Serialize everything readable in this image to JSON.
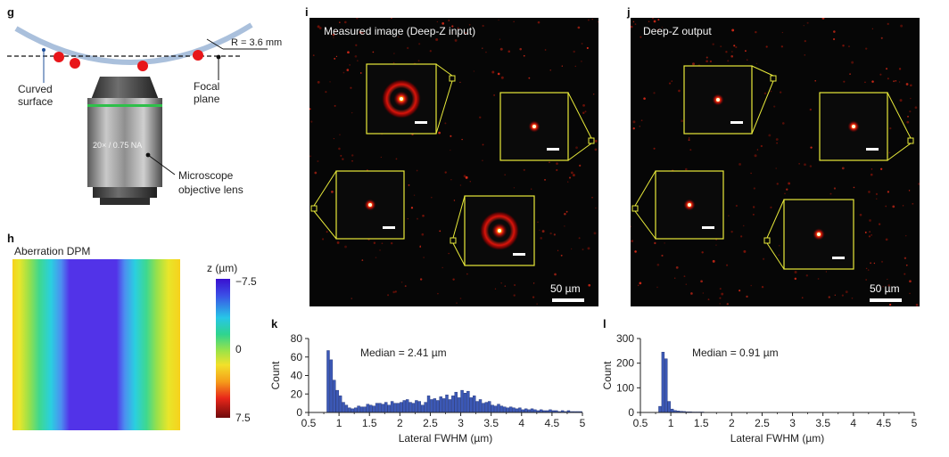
{
  "panel_g": {
    "letter": "g",
    "radius_label": "R = 3.6 mm",
    "curved_surface_line1": "Curved",
    "curved_surface_line2": "surface",
    "focal_line1": "Focal",
    "focal_line2": "plane",
    "objective_marking": "20× / 0.75 NA",
    "objective_line1": "Microscope",
    "objective_line2": "objective lens"
  },
  "panel_h": {
    "letter": "h",
    "title": "Aberration DPM",
    "colorbar_unit": "z (µm)",
    "colorbar_ticks": [
      "−7.5",
      "0",
      "7.5"
    ]
  },
  "panel_i": {
    "letter": "i",
    "title": "Measured image (Deep-Z input)",
    "scale_label": "50 µm"
  },
  "panel_j": {
    "letter": "j",
    "title": "Deep-Z output",
    "scale_label": "50 µm"
  },
  "chart_data": [
    {
      "panel": "k",
      "type": "bar",
      "title": "",
      "annotation": "Median = 2.41 µm",
      "xlabel": "Lateral FWHM (µm)",
      "ylabel": "Count",
      "xlim": [
        0.5,
        5
      ],
      "ylim": [
        0,
        80
      ],
      "xticks": [
        "0.5",
        "1",
        "1.5",
        "2",
        "2.5",
        "3",
        "3.5",
        "4",
        "4.5",
        "5"
      ],
      "yticks": [
        "0",
        "20",
        "40",
        "60",
        "80"
      ],
      "bin_width": 0.05,
      "bin_start": 0.8,
      "values": [
        67,
        57,
        35,
        24,
        18,
        11,
        8,
        5,
        4,
        5,
        7,
        6,
        6,
        9,
        8,
        7,
        10,
        10,
        9,
        11,
        8,
        12,
        10,
        10,
        11,
        13,
        14,
        11,
        10,
        13,
        12,
        8,
        11,
        18,
        14,
        15,
        13,
        17,
        15,
        19,
        14,
        18,
        22,
        16,
        24,
        21,
        23,
        16,
        18,
        12,
        14,
        10,
        11,
        12,
        8,
        7,
        9,
        7,
        6,
        5,
        6,
        5,
        4,
        5,
        3,
        4,
        3,
        4,
        3,
        2,
        3,
        2,
        2,
        3,
        2,
        2,
        1,
        2,
        1,
        2,
        1,
        1,
        1,
        1
      ]
    },
    {
      "panel": "l",
      "type": "bar",
      "title": "",
      "annotation": "Median = 0.91 µm",
      "xlabel": "Lateral FWHM (µm)",
      "ylabel": "Count",
      "xlim": [
        0.5,
        5
      ],
      "ylim": [
        0,
        300
      ],
      "xticks": [
        "0.5",
        "1",
        "1.5",
        "2",
        "2.5",
        "3",
        "3.5",
        "4",
        "4.5",
        "5"
      ],
      "yticks": [
        "0",
        "100",
        "200",
        "300"
      ],
      "bin_width": 0.05,
      "bin_start": 0.8,
      "values": [
        25,
        245,
        218,
        45,
        14,
        8,
        6,
        5,
        4,
        3,
        3,
        2,
        2,
        2,
        2,
        1,
        1,
        1,
        1,
        1,
        1,
        1,
        1,
        1,
        1,
        1,
        1,
        1,
        1,
        1,
        1,
        1,
        1,
        1,
        1,
        1,
        1,
        1,
        1,
        1,
        1,
        1,
        1,
        1,
        1,
        1,
        1,
        1,
        1,
        1,
        1,
        1,
        1,
        1,
        1,
        1,
        1,
        1,
        1,
        1,
        1,
        1,
        1,
        1,
        1,
        1,
        1,
        1,
        1,
        1,
        1,
        1,
        1,
        1,
        1,
        1,
        1,
        1,
        1,
        1,
        1,
        1,
        1,
        1
      ]
    }
  ]
}
